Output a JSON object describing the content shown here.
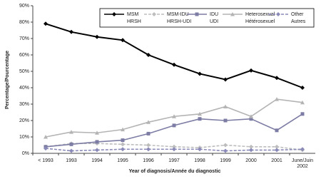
{
  "chart_data": {
    "type": "line",
    "ylabel": "Percentage/Pourcentage",
    "xlabel": "Year of diagnosis/Année du diagnostic",
    "categories": [
      "< 1993",
      "1993",
      "1994",
      "1995",
      "1996",
      "1997",
      "1998",
      "1999",
      "2000",
      "2001",
      "June/Juin 2002"
    ],
    "ylim": [
      0,
      90
    ],
    "yticks": [
      {
        "value": 0,
        "label": "0%"
      },
      {
        "value": 10,
        "label": "10%"
      },
      {
        "value": 20,
        "label": "20%"
      },
      {
        "value": 30,
        "label": "30%"
      },
      {
        "value": 40,
        "label": "40%"
      },
      {
        "value": 50,
        "label": "50%"
      },
      {
        "value": 60,
        "label": "60%"
      },
      {
        "value": 70,
        "label": "70%"
      },
      {
        "value": 80,
        "label": "80%"
      },
      {
        "value": 90,
        "label": "90%"
      }
    ],
    "grid": false,
    "legend": "top-right",
    "series": [
      {
        "name": "MSM",
        "name_fr": "HRSH",
        "color": "#000000",
        "marker": "diamond",
        "dash": false,
        "values": [
          79,
          74,
          71,
          69,
          60,
          54,
          48.5,
          45,
          50.5,
          46,
          40
        ]
      },
      {
        "name": "MSM-IDU",
        "name_fr": "HRSH-UDI",
        "color": "#bdbdbd",
        "marker": "diamond",
        "dash": true,
        "values": [
          4,
          6,
          6,
          5.5,
          5,
          4,
          3.5,
          5,
          4,
          4,
          2
        ]
      },
      {
        "name": "IDU",
        "name_fr": "UDI",
        "color": "#7c7ca4",
        "marker": "square",
        "dash": false,
        "values": [
          4,
          5.5,
          7,
          8,
          12,
          17,
          21,
          20,
          21,
          14,
          24
        ]
      },
      {
        "name": "Heterosexual",
        "name_fr": "Hétérosexuel",
        "color": "#b4b4b4",
        "marker": "triangle",
        "dash": false,
        "values": [
          10,
          13,
          12.5,
          14.5,
          19,
          22.5,
          24,
          28.5,
          22.5,
          33,
          31
        ]
      },
      {
        "name": "Other",
        "name_fr": "Autres",
        "color": "#8a8ab8",
        "marker": "diamond",
        "dash": true,
        "values": [
          3,
          1.5,
          2,
          2.5,
          2.5,
          2.5,
          2.5,
          1.5,
          2,
          2,
          2.5
        ]
      }
    ]
  }
}
